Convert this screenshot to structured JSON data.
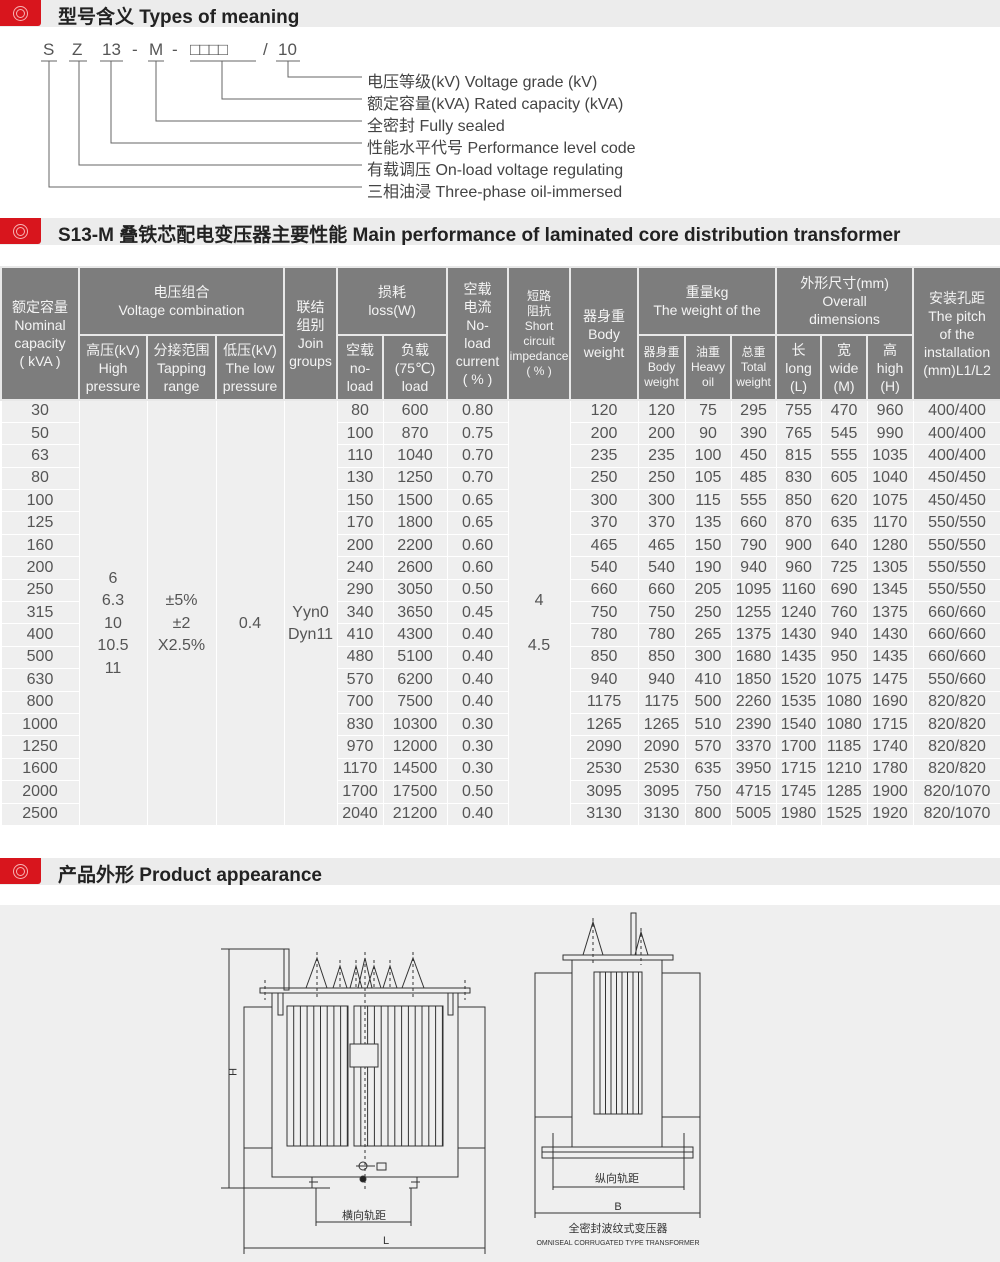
{
  "sections": {
    "types": "型号含义 Types of meaning",
    "performance": "S13-M 叠铁芯配电变压器主要性能 Main performance of laminated core distribution transformer",
    "appearance": "产品外形 Product appearance"
  },
  "model_code": {
    "s": "S",
    "z": "Z",
    "level": "13",
    "dash1": "-",
    "m": "M",
    "dash2": "-",
    "capacity": "□□□□",
    "slash": "/",
    "voltage": "10"
  },
  "model_legend": [
    "电压等级(kV) Voltage grade (kV)",
    "额定容量(kVA) Rated capacity (kVA)",
    "全密封 Fully sealed",
    "性能水平代号 Performance level code",
    "有载调压 On-load voltage regulating",
    "三相油浸 Three-phase oil-immersed"
  ],
  "table": {
    "headers": {
      "capacity": [
        "额定容量",
        "Nominal",
        "capacity",
        "( kVA )"
      ],
      "voltage": [
        "电压组合",
        "Voltage combination"
      ],
      "hv": [
        "高压(kV)",
        "High",
        "pressure"
      ],
      "tap": [
        "分接范围",
        "Tapping",
        "range"
      ],
      "lv": [
        "低压(kV)",
        "The low",
        "pressure"
      ],
      "join": [
        "联结",
        "组别",
        "Join",
        "groups"
      ],
      "loss": [
        "损耗",
        "loss(W)"
      ],
      "noload": [
        "空载",
        "no-",
        "load"
      ],
      "load": [
        "负载",
        "(75℃)",
        "load"
      ],
      "current": [
        "空载",
        "电流",
        "No-",
        "load",
        "current",
        "( % )"
      ],
      "impedance": [
        "短路",
        "阻抗",
        "Short",
        "circuit",
        "impedance",
        "( % )"
      ],
      "body": [
        "器身重",
        "Body",
        "weight"
      ],
      "weight": [
        "重量kg",
        "The weight of the"
      ],
      "body2": [
        "器身重",
        "Body",
        "weight"
      ],
      "oil": [
        "油重",
        "Heavy",
        "oil"
      ],
      "total": [
        "总重",
        "Total",
        "weight"
      ],
      "dims": [
        "外形尺寸(mm)",
        "Overall",
        "dimensions"
      ],
      "long": [
        "长",
        "long",
        "(L)"
      ],
      "wide": [
        "宽",
        "wide",
        "(M)"
      ],
      "high": [
        "高",
        "high",
        "(H)"
      ],
      "pitch": [
        "安装孔距",
        "The pitch",
        "of the",
        "installation",
        "(mm)L1/L2"
      ]
    },
    "merged": {
      "hv": [
        "6",
        "6.3",
        "10",
        "10.5",
        "11"
      ],
      "tap": [
        "±5%",
        "±2",
        "X2.5%"
      ],
      "lv": "0.4",
      "join": [
        "Yyn0",
        "Dyn11"
      ],
      "impedance": [
        "4",
        "4.5"
      ]
    },
    "rows": [
      [
        "30",
        "80",
        "600",
        "0.80",
        "120",
        "120",
        "75",
        "295",
        "755",
        "470",
        "960",
        "400/400"
      ],
      [
        "50",
        "100",
        "870",
        "0.75",
        "200",
        "200",
        "90",
        "390",
        "765",
        "545",
        "990",
        "400/400"
      ],
      [
        "63",
        "110",
        "1040",
        "0.70",
        "235",
        "235",
        "100",
        "450",
        "815",
        "555",
        "1035",
        "400/400"
      ],
      [
        "80",
        "130",
        "1250",
        "0.70",
        "250",
        "250",
        "105",
        "485",
        "830",
        "605",
        "1040",
        "450/450"
      ],
      [
        "100",
        "150",
        "1500",
        "0.65",
        "300",
        "300",
        "115",
        "555",
        "850",
        "620",
        "1075",
        "450/450"
      ],
      [
        "125",
        "170",
        "1800",
        "0.65",
        "370",
        "370",
        "135",
        "660",
        "870",
        "635",
        "1170",
        "550/550"
      ],
      [
        "160",
        "200",
        "2200",
        "0.60",
        "465",
        "465",
        "150",
        "790",
        "900",
        "640",
        "1280",
        "550/550"
      ],
      [
        "200",
        "240",
        "2600",
        "0.60",
        "540",
        "540",
        "190",
        "940",
        "960",
        "725",
        "1305",
        "550/550"
      ],
      [
        "250",
        "290",
        "3050",
        "0.50",
        "660",
        "660",
        "205",
        "1095",
        "1160",
        "690",
        "1345",
        "550/550"
      ],
      [
        "315",
        "340",
        "3650",
        "0.45",
        "750",
        "750",
        "250",
        "1255",
        "1240",
        "760",
        "1375",
        "660/660"
      ],
      [
        "400",
        "410",
        "4300",
        "0.40",
        "780",
        "780",
        "265",
        "1375",
        "1430",
        "940",
        "1430",
        "660/660"
      ],
      [
        "500",
        "480",
        "5100",
        "0.40",
        "850",
        "850",
        "300",
        "1680",
        "1435",
        "950",
        "1435",
        "660/660"
      ],
      [
        "630",
        "570",
        "6200",
        "0.40",
        "940",
        "940",
        "410",
        "1850",
        "1520",
        "1075",
        "1475",
        "550/660"
      ],
      [
        "800",
        "700",
        "7500",
        "0.40",
        "1175",
        "1175",
        "500",
        "2260",
        "1535",
        "1080",
        "1690",
        "820/820"
      ],
      [
        "1000",
        "830",
        "10300",
        "0.30",
        "1265",
        "1265",
        "510",
        "2390",
        "1540",
        "1080",
        "1715",
        "820/820"
      ],
      [
        "1250",
        "970",
        "12000",
        "0.30",
        "2090",
        "2090",
        "570",
        "3370",
        "1700",
        "1185",
        "1740",
        "820/820"
      ],
      [
        "1600",
        "1170",
        "14500",
        "0.30",
        "2530",
        "2530",
        "635",
        "3950",
        "1715",
        "1210",
        "1780",
        "820/820"
      ],
      [
        "2000",
        "1700",
        "17500",
        "0.50",
        "3095",
        "3095",
        "750",
        "4715",
        "1745",
        "1285",
        "1900",
        "820/1070"
      ],
      [
        "2500",
        "2040",
        "21200",
        "0.40",
        "3130",
        "3130",
        "800",
        "5005",
        "1980",
        "1525",
        "1920",
        "820/1070"
      ]
    ]
  },
  "drawing": {
    "h": "H",
    "l": "L",
    "b": "B",
    "transverse": "横向轨距",
    "longitudinal": "纵向轨距",
    "caption_cn": "全密封波纹式变压器",
    "caption_en": "OMNISEAL CORRUGATED TYPE TRANSFORMER"
  },
  "colors": {
    "accent": "#d8151d",
    "header_bg": "#7d7d7d",
    "row_bg": "#efefef"
  }
}
